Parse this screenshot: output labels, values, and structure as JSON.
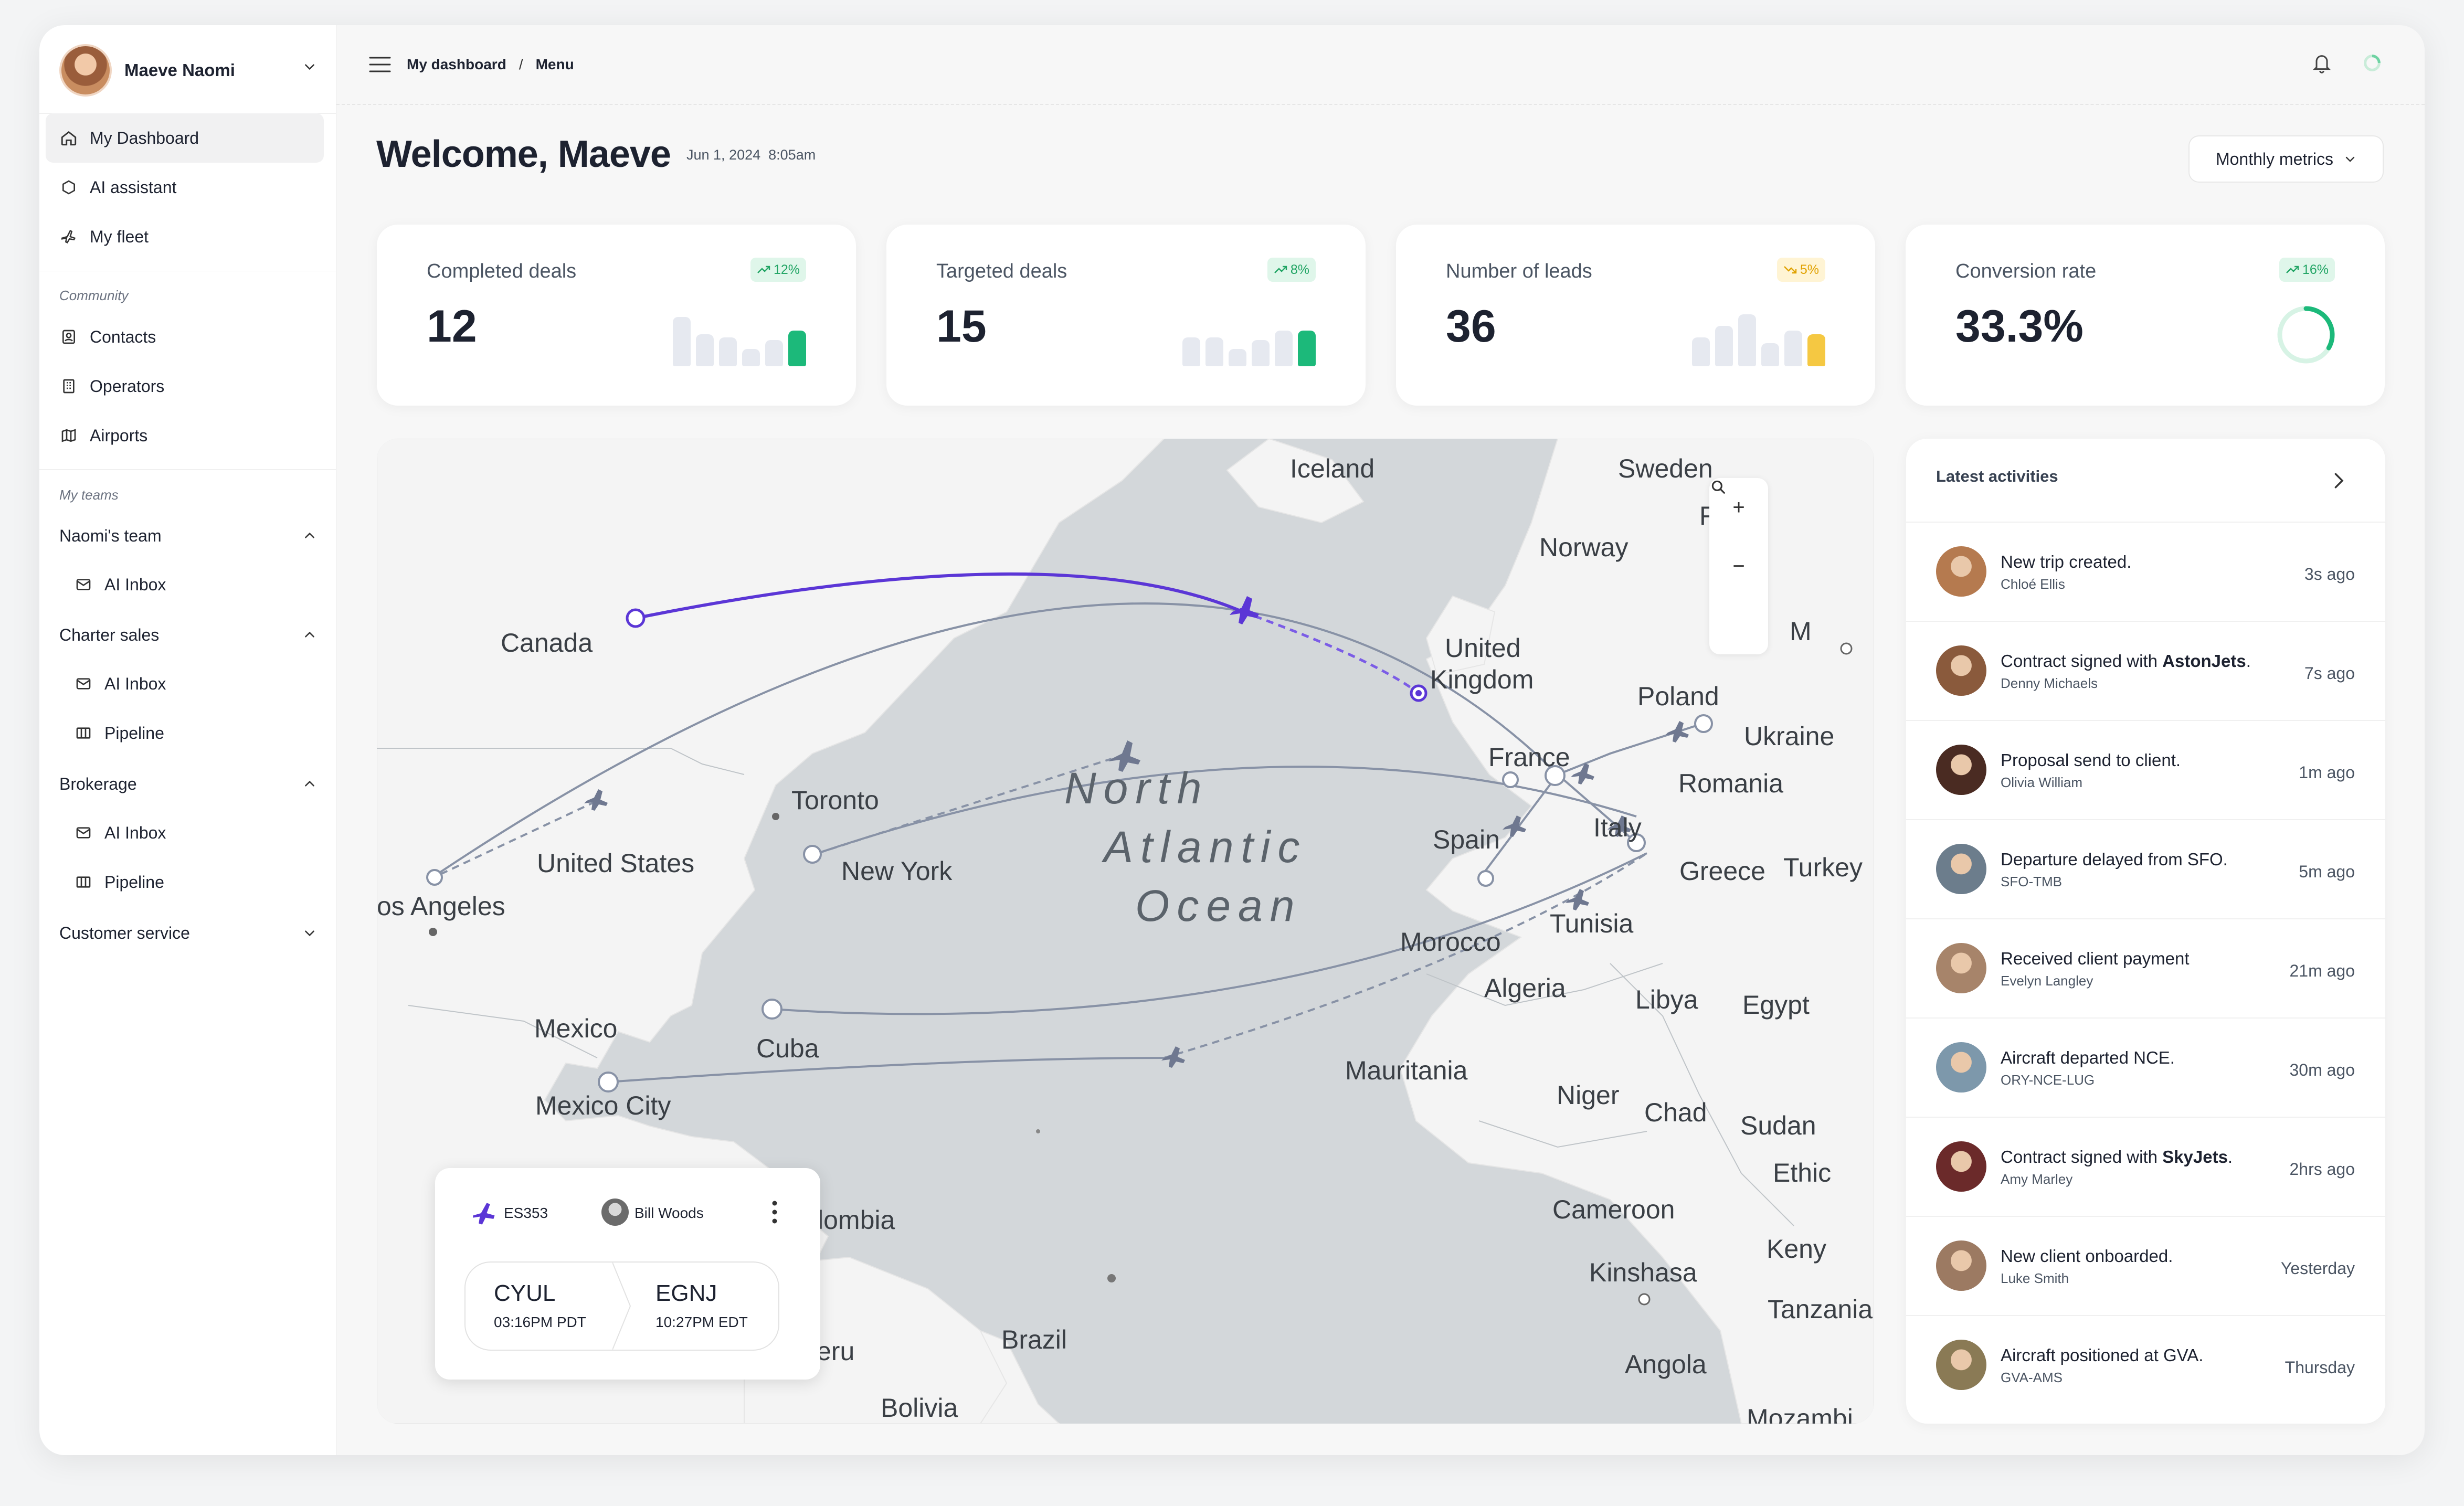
{
  "user": {
    "name": "Maeve Naomi"
  },
  "nav": {
    "primary": [
      {
        "label": "My Dashboard",
        "icon": "home-icon"
      },
      {
        "label": "AI assistant",
        "icon": "hexagon-icon"
      },
      {
        "label": "My fleet",
        "icon": "plane-icon"
      }
    ],
    "community_label": "Community",
    "community": [
      {
        "label": "Contacts",
        "icon": "contact-card-icon"
      },
      {
        "label": "Operators",
        "icon": "building-icon"
      },
      {
        "label": "Airports",
        "icon": "map-icon"
      }
    ],
    "teams_label": "My teams",
    "teams": {
      "naomi": {
        "label": "Naomi's team",
        "inbox": "AI Inbox"
      },
      "charter": {
        "label": "Charter sales",
        "inbox": "AI Inbox",
        "pipeline": "Pipeline"
      },
      "brokerage": {
        "label": "Brokerage",
        "inbox": "AI Inbox",
        "pipeline": "Pipeline"
      },
      "customer": {
        "label": "Customer service"
      }
    }
  },
  "breadcrumb": {
    "first": "My dashboard",
    "sep": "/",
    "second": "Menu"
  },
  "header": {
    "welcome": "Welcome, Maeve",
    "date": "Jun 1, 2024",
    "time": "8:05am",
    "metrics_button": "Monthly metrics"
  },
  "kpis": [
    {
      "label": "Completed deals",
      "value": "12",
      "badge": "12%",
      "trend": "up",
      "bars": [
        0.85,
        0.55,
        0.5,
        0.3,
        0.45,
        0.62
      ],
      "accent": "#1cb97a"
    },
    {
      "label": "Targeted deals",
      "value": "15",
      "badge": "8%",
      "trend": "up",
      "bars": [
        0.5,
        0.5,
        0.3,
        0.45,
        0.62,
        0.62
      ],
      "accent": "#1cb97a"
    },
    {
      "label": "Number of leads",
      "value": "36",
      "badge": "5%",
      "trend": "down",
      "bars": [
        0.5,
        0.7,
        0.9,
        0.4,
        0.62,
        0.55
      ],
      "accent": "#f5c842"
    },
    {
      "label": "Conversion rate",
      "value": "33.3%",
      "badge": "16%",
      "trend": "up",
      "progress": 0.333,
      "accent": "#1cb97a"
    }
  ],
  "map": {
    "labels": {
      "iceland": "Iceland",
      "sweden": "Sweden",
      "finland": "Fi  nd",
      "norway": "Norway",
      "canada": "Canada",
      "uk1": "United",
      "uk2": "Kingdom",
      "poland": "Poland",
      "ukraine": "Ukraine",
      "france": "France",
      "romania": "Romania",
      "toronto": "Toronto",
      "us": "United States",
      "newyork": "New York",
      "spain": "Spain",
      "italy": "Italy",
      "greece": "Greece",
      "turkey": "Turkey",
      "la": "os Angeles",
      "morocco": "Morocco",
      "tunisia": "Tunisia",
      "algeria": "Algeria",
      "libya": "Libya",
      "egypt": "Egypt",
      "mexico": "Mexico",
      "cuba": "Cuba",
      "mauritania": "Mauritania",
      "niger": "Niger",
      "chad": "Chad",
      "sudan": "Sudan",
      "mexicocity": "Mexico City",
      "ethiopia": "Ethic",
      "cameroon": "Cameroon",
      "kenya": "Keny",
      "colombia": "lombia",
      "kinshasa": "Kinshasa",
      "tanzania": "Tanzania",
      "peru": "eru",
      "brazil": "Brazil",
      "angola": "Angola",
      "bolivia": "Bolivia",
      "mozambique": "Mozambi",
      "ocean1": "North",
      "ocean2": "Atlantic",
      "ocean3": "Ocean",
      "m": "M"
    },
    "zoom_in": "+",
    "zoom_out": "−"
  },
  "flight": {
    "code": "ES353",
    "pilot": "Bill Woods",
    "from_code": "CYUL",
    "from_time": "03:16PM PDT",
    "to_code": "EGNJ",
    "to_time": "10:27PM EDT"
  },
  "activities": {
    "title": "Latest activities",
    "items": [
      {
        "text": "New trip created.",
        "bold": "",
        "after": "",
        "sub": "Chloé Ellis",
        "time": "3s ago",
        "color": "#b57a4f"
      },
      {
        "text": "Contract signed with ",
        "bold": "AstonJets",
        "after": ".",
        "sub": "Denny Michaels",
        "time": "7s ago",
        "color": "#8a5a3c"
      },
      {
        "text": "Proposal send to client.",
        "bold": "",
        "after": "",
        "sub": "Olivia William",
        "time": "1m ago",
        "color": "#4a2b22"
      },
      {
        "text": "Departure delayed from SFO.",
        "bold": "",
        "after": "",
        "sub": "SFO-TMB",
        "time": "5m ago",
        "color": "#6c7d8c"
      },
      {
        "text": "Received client payment",
        "bold": "",
        "after": "",
        "sub": "Evelyn Langley",
        "time": "21m ago",
        "color": "#a7846a"
      },
      {
        "text": "Aircraft departed NCE.",
        "bold": "",
        "after": "",
        "sub": "ORY-NCE-LUG",
        "time": "30m ago",
        "color": "#7d98ab"
      },
      {
        "text": "Contract signed with ",
        "bold": "SkyJets",
        "after": ".",
        "sub": "Amy Marley",
        "time": "2hrs ago",
        "color": "#6b2a2a"
      },
      {
        "text": "New client onboarded.",
        "bold": "",
        "after": "",
        "sub": "Luke Smith",
        "time": "Yesterday",
        "color": "#9c7a62"
      },
      {
        "text": "Aircraft positioned at GVA.",
        "bold": "",
        "after": "",
        "sub": "GVA-AMS",
        "time": "Thursday",
        "color": "#8a7a55"
      }
    ]
  }
}
